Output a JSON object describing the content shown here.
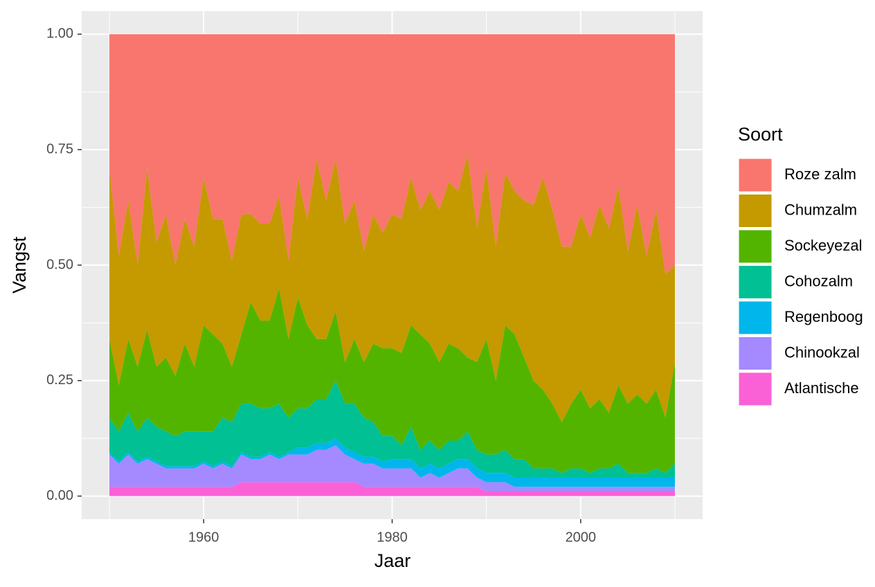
{
  "chart_data": {
    "type": "stacked_area",
    "x_label": "Jaar",
    "y_label": "Vangst",
    "legend_title": "Soort",
    "x": [
      1950,
      1951,
      1952,
      1953,
      1954,
      1955,
      1956,
      1957,
      1958,
      1959,
      1960,
      1961,
      1962,
      1963,
      1964,
      1965,
      1966,
      1967,
      1968,
      1969,
      1970,
      1971,
      1972,
      1973,
      1974,
      1975,
      1976,
      1977,
      1978,
      1979,
      1980,
      1981,
      1982,
      1983,
      1984,
      1985,
      1986,
      1987,
      1988,
      1989,
      1990,
      1991,
      1992,
      1993,
      1994,
      1995,
      1996,
      1997,
      1998,
      1999,
      2000,
      2001,
      2002,
      2003,
      2004,
      2005,
      2006,
      2007,
      2008,
      2009,
      2010
    ],
    "xlim": [
      1947.06,
      2012.94
    ],
    "xticks": [
      1960,
      1980,
      2000
    ],
    "ylim": [
      -0.05,
      1.05
    ],
    "yticks": [
      {
        "value": 0,
        "label": "0.00"
      },
      {
        "value": 0.25,
        "label": "0.25"
      },
      {
        "value": 0.5,
        "label": "0.50"
      },
      {
        "value": 0.75,
        "label": "0.75"
      },
      {
        "value": 1,
        "label": "1.00"
      }
    ],
    "grid": true,
    "series": [
      {
        "name": "Roze zalm",
        "color": "#F8766D",
        "values": [
          0.29,
          0.48,
          0.36,
          0.5,
          0.29,
          0.45,
          0.39,
          0.5,
          0.4,
          0.46,
          0.31,
          0.4,
          0.4,
          0.49,
          0.39,
          0.39,
          0.41,
          0.41,
          0.35,
          0.49,
          0.31,
          0.4,
          0.27,
          0.36,
          0.27,
          0.41,
          0.36,
          0.47,
          0.39,
          0.43,
          0.39,
          0.4,
          0.31,
          0.38,
          0.34,
          0.38,
          0.32,
          0.34,
          0.26,
          0.42,
          0.29,
          0.46,
          0.3,
          0.34,
          0.36,
          0.37,
          0.31,
          0.38,
          0.46,
          0.46,
          0.39,
          0.44,
          0.37,
          0.42,
          0.33,
          0.47,
          0.37,
          0.48,
          0.38,
          0.52,
          0.5
        ]
      },
      {
        "name": "Chumzalm",
        "color": "#C49A00",
        "values": [
          0.37,
          0.28,
          0.3,
          0.22,
          0.35,
          0.27,
          0.31,
          0.24,
          0.27,
          0.26,
          0.32,
          0.25,
          0.27,
          0.23,
          0.26,
          0.19,
          0.21,
          0.21,
          0.2,
          0.17,
          0.26,
          0.23,
          0.39,
          0.3,
          0.33,
          0.3,
          0.3,
          0.24,
          0.28,
          0.25,
          0.29,
          0.29,
          0.32,
          0.27,
          0.33,
          0.33,
          0.35,
          0.34,
          0.44,
          0.29,
          0.37,
          0.29,
          0.33,
          0.31,
          0.34,
          0.38,
          0.46,
          0.42,
          0.38,
          0.34,
          0.38,
          0.37,
          0.42,
          0.4,
          0.43,
          0.33,
          0.41,
          0.32,
          0.39,
          0.31,
          0.21
        ]
      },
      {
        "name": "Sockeyezal",
        "color": "#53B400",
        "values": [
          0.17,
          0.1,
          0.16,
          0.14,
          0.19,
          0.13,
          0.16,
          0.13,
          0.19,
          0.14,
          0.23,
          0.21,
          0.16,
          0.12,
          0.15,
          0.22,
          0.19,
          0.19,
          0.25,
          0.17,
          0.24,
          0.18,
          0.13,
          0.13,
          0.15,
          0.09,
          0.14,
          0.12,
          0.17,
          0.19,
          0.19,
          0.2,
          0.22,
          0.25,
          0.21,
          0.19,
          0.21,
          0.2,
          0.16,
          0.19,
          0.25,
          0.16,
          0.27,
          0.27,
          0.22,
          0.19,
          0.17,
          0.14,
          0.11,
          0.14,
          0.17,
          0.14,
          0.15,
          0.12,
          0.17,
          0.15,
          0.17,
          0.15,
          0.17,
          0.12,
          0.22
        ]
      },
      {
        "name": "Cohozalm",
        "color": "#00C094",
        "values": [
          0.075,
          0.065,
          0.085,
          0.065,
          0.085,
          0.075,
          0.075,
          0.065,
          0.075,
          0.075,
          0.065,
          0.075,
          0.095,
          0.095,
          0.105,
          0.115,
          0.105,
          0.095,
          0.115,
          0.075,
          0.085,
          0.085,
          0.095,
          0.095,
          0.125,
          0.095,
          0.105,
          0.085,
          0.075,
          0.055,
          0.05,
          0.03,
          0.07,
          0.04,
          0.05,
          0.04,
          0.05,
          0.04,
          0.06,
          0.04,
          0.04,
          0.04,
          0.05,
          0.04,
          0.04,
          0.02,
          0.02,
          0.02,
          0.01,
          0.02,
          0.02,
          0.01,
          0.02,
          0.02,
          0.03,
          0.01,
          0.01,
          0.01,
          0.02,
          0.01,
          0.03
        ]
      },
      {
        "name": "Regenboog",
        "color": "#00B6EB",
        "values": [
          0.005,
          0.005,
          0.005,
          0.005,
          0.005,
          0.005,
          0.005,
          0.005,
          0.005,
          0.005,
          0.005,
          0.005,
          0.005,
          0.005,
          0.005,
          0.005,
          0.005,
          0.005,
          0.005,
          0.005,
          0.015,
          0.015,
          0.015,
          0.015,
          0.015,
          0.015,
          0.015,
          0.015,
          0.015,
          0.015,
          0.02,
          0.02,
          0.02,
          0.02,
          0.02,
          0.02,
          0.02,
          0.02,
          0.02,
          0.02,
          0.02,
          0.02,
          0.02,
          0.02,
          0.02,
          0.02,
          0.02,
          0.02,
          0.02,
          0.02,
          0.02,
          0.02,
          0.02,
          0.02,
          0.02,
          0.02,
          0.02,
          0.02,
          0.02,
          0.02,
          0.02
        ]
      },
      {
        "name": "Chinookzal",
        "color": "#A58AFF",
        "values": [
          0.07,
          0.05,
          0.07,
          0.05,
          0.06,
          0.05,
          0.04,
          0.04,
          0.04,
          0.04,
          0.05,
          0.04,
          0.05,
          0.04,
          0.06,
          0.05,
          0.05,
          0.06,
          0.05,
          0.06,
          0.06,
          0.06,
          0.07,
          0.07,
          0.08,
          0.06,
          0.05,
          0.05,
          0.05,
          0.04,
          0.04,
          0.04,
          0.04,
          0.02,
          0.03,
          0.02,
          0.03,
          0.04,
          0.04,
          0.02,
          0.02,
          0.02,
          0.02,
          0.01,
          0.01,
          0.01,
          0.01,
          0.01,
          0.01,
          0.01,
          0.01,
          0.01,
          0.01,
          0.01,
          0.01,
          0.01,
          0.01,
          0.01,
          0.01,
          0.01,
          0.01
        ]
      },
      {
        "name": "Atlantische",
        "color": "#FB61D7",
        "values": [
          0.02,
          0.02,
          0.02,
          0.02,
          0.02,
          0.02,
          0.02,
          0.02,
          0.02,
          0.02,
          0.02,
          0.02,
          0.02,
          0.02,
          0.03,
          0.03,
          0.03,
          0.03,
          0.03,
          0.03,
          0.03,
          0.03,
          0.03,
          0.03,
          0.03,
          0.03,
          0.03,
          0.02,
          0.02,
          0.02,
          0.02,
          0.02,
          0.02,
          0.02,
          0.02,
          0.02,
          0.02,
          0.02,
          0.02,
          0.02,
          0.01,
          0.01,
          0.01,
          0.01,
          0.01,
          0.01,
          0.01,
          0.01,
          0.01,
          0.01,
          0.01,
          0.01,
          0.01,
          0.01,
          0.01,
          0.01,
          0.01,
          0.01,
          0.01,
          0.01,
          0.01
        ]
      }
    ]
  }
}
